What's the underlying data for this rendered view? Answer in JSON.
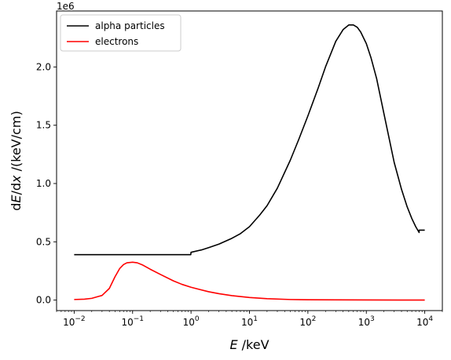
{
  "chart_data": {
    "type": "line",
    "title": "",
    "xlabel": "E /keV",
    "ylabel": "dE/dx /(keV/cm)",
    "x_scale": "log",
    "y_offset_text": "1e6",
    "xlim": [
      0.005,
      20000
    ],
    "ylim": [
      -90000,
      2480000
    ],
    "grid": false,
    "legend_position": "top-left",
    "x_ticks": [
      {
        "value": 0.01,
        "mant": "10",
        "exp": "−2"
      },
      {
        "value": 0.1,
        "mant": "10",
        "exp": "−1"
      },
      {
        "value": 1,
        "mant": "10",
        "exp": "0"
      },
      {
        "value": 10,
        "mant": "10",
        "exp": "1"
      },
      {
        "value": 100,
        "mant": "10",
        "exp": "2"
      },
      {
        "value": 1000,
        "mant": "10",
        "exp": "3"
      },
      {
        "value": 10000,
        "mant": "10",
        "exp": "4"
      }
    ],
    "y_ticks": [
      {
        "value": 0,
        "label": "0.0"
      },
      {
        "value": 500000,
        "label": "0.5"
      },
      {
        "value": 1000000,
        "label": "1.0"
      },
      {
        "value": 1500000,
        "label": "1.5"
      },
      {
        "value": 2000000,
        "label": "2.0"
      }
    ],
    "series": [
      {
        "name": "alpha particles",
        "color": "#000000",
        "x": [
          0.01,
          0.1,
          0.99,
          1.0,
          1.5,
          2,
          3,
          5,
          7,
          10,
          15,
          20,
          30,
          50,
          70,
          100,
          150,
          200,
          300,
          400,
          500,
          600,
          700,
          800,
          1000,
          1200,
          1500,
          2000,
          3000,
          4000,
          5000,
          6000,
          7000,
          8000,
          8001,
          10000
        ],
        "y": [
          390000,
          390000,
          390000,
          410000,
          430000,
          450000,
          480000,
          530000,
          570000,
          630000,
          730000,
          810000,
          960000,
          1200000,
          1380000,
          1580000,
          1820000,
          2000000,
          2220000,
          2320000,
          2360000,
          2360000,
          2340000,
          2300000,
          2200000,
          2080000,
          1900000,
          1600000,
          1180000,
          950000,
          800000,
          700000,
          630000,
          580000,
          600000,
          600000
        ]
      },
      {
        "name": "electrons",
        "color": "#ff0000",
        "x": [
          0.01,
          0.015,
          0.02,
          0.03,
          0.04,
          0.05,
          0.06,
          0.07,
          0.08,
          0.1,
          0.12,
          0.15,
          0.2,
          0.3,
          0.5,
          0.7,
          1,
          2,
          3,
          5,
          10,
          20,
          50,
          100,
          1000,
          10000
        ],
        "y": [
          5000,
          8000,
          15000,
          40000,
          100000,
          200000,
          270000,
          305000,
          320000,
          325000,
          320000,
          300000,
          265000,
          220000,
          165000,
          135000,
          110000,
          72000,
          55000,
          38000,
          22000,
          12000,
          5000,
          3000,
          1000,
          500
        ]
      }
    ]
  }
}
